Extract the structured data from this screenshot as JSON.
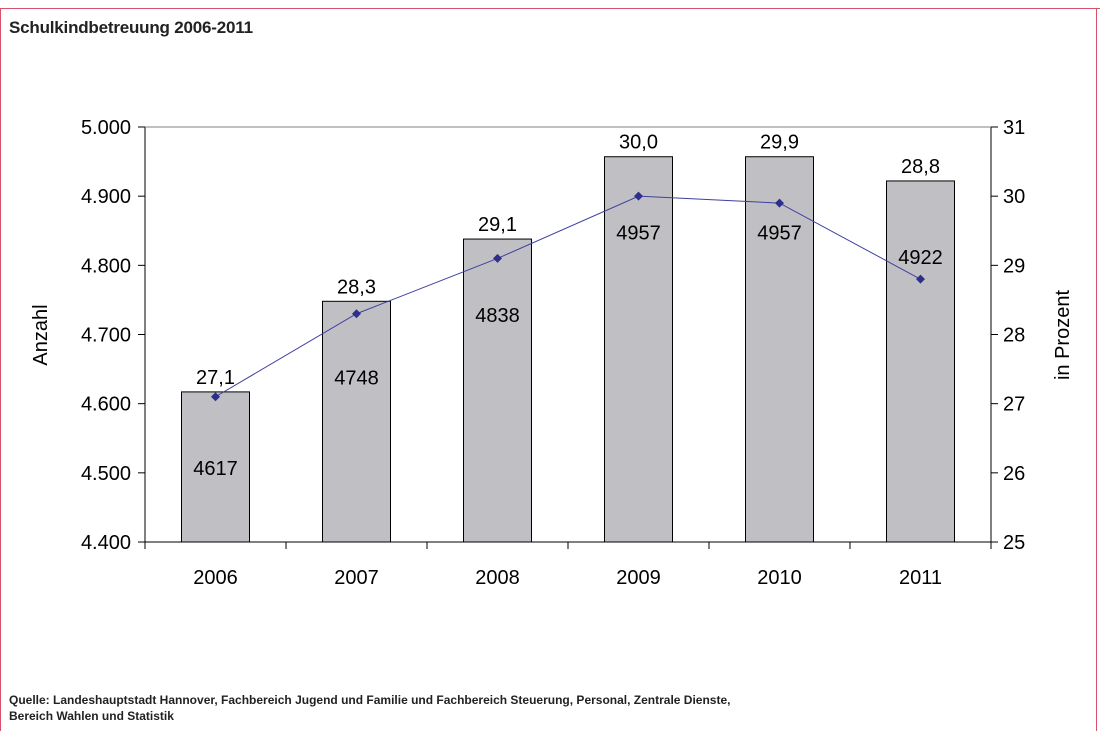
{
  "title": "Schulkindbetreuung 2006-2011",
  "source_line1": "Quelle: Landeshauptstadt Hannover, Fachbereich Jugend und Familie und Fachbereich Steuerung, Personal, Zentrale Dienste,",
  "source_line2": "Bereich Wahlen und Statistik",
  "colors": {
    "bar": "#c0c0c4",
    "line": "#3f3f9f",
    "marker": "#2e2e8c",
    "frame": "#d6526a"
  },
  "chart_data": {
    "type": "bar",
    "categories": [
      "2006",
      "2007",
      "2008",
      "2009",
      "2010",
      "2011"
    ],
    "series": [
      {
        "values": [
          4617,
          4748,
          4838,
          4957,
          4957,
          4922
        ],
        "axis": "left",
        "type": "bar"
      },
      {
        "values": [
          27.1,
          28.3,
          29.1,
          30.0,
          29.9,
          28.8
        ],
        "axis": "right",
        "type": "line"
      }
    ],
    "bar_labels": [
      "4617",
      "4748",
      "4838",
      "4957",
      "4957",
      "4922"
    ],
    "line_labels": [
      "27,1",
      "28,3",
      "29,1",
      "30,0",
      "29,9",
      "28,8"
    ],
    "ylabel": "Anzahl",
    "y2label": "in Prozent",
    "ylim": [
      4400,
      5000
    ],
    "y2lim": [
      25,
      31
    ],
    "yticks": [
      "4.400",
      "4.500",
      "4.600",
      "4.700",
      "4.800",
      "4.900",
      "5.000"
    ],
    "y2ticks": [
      "25",
      "26",
      "27",
      "28",
      "29",
      "30",
      "31"
    ],
    "grid": false
  }
}
